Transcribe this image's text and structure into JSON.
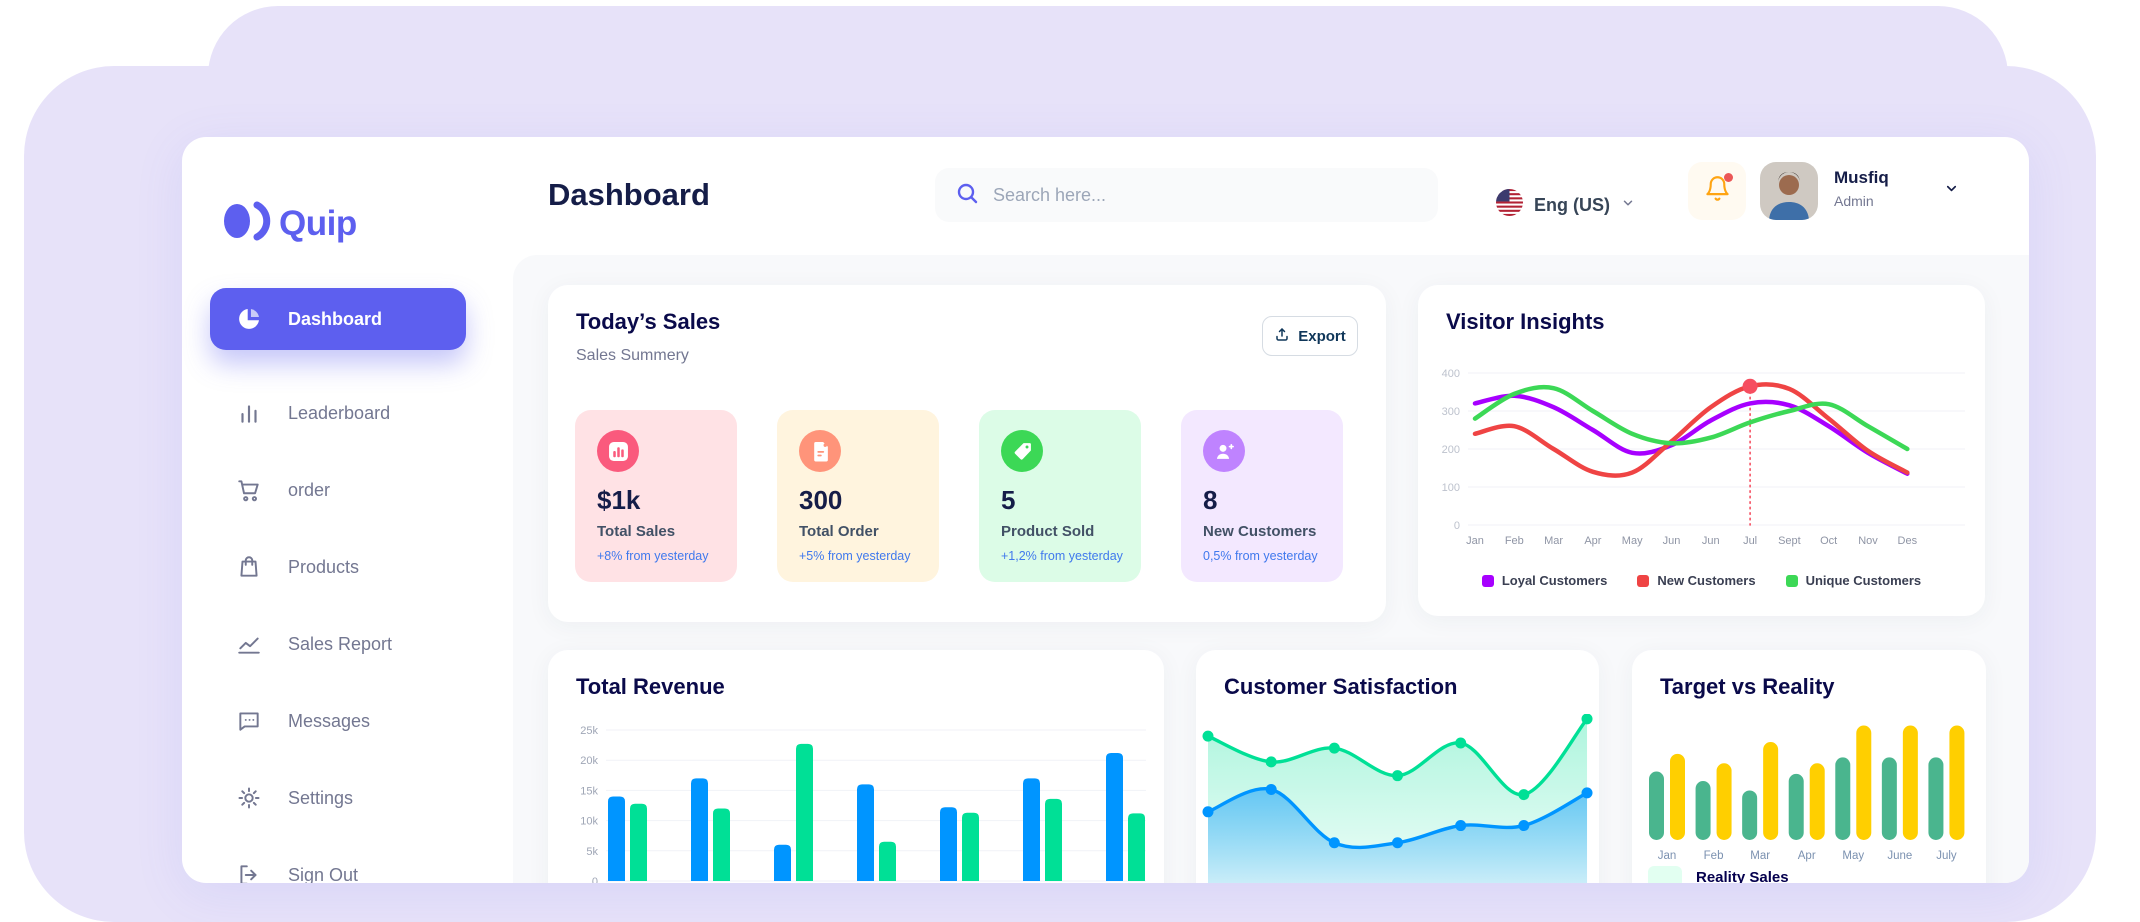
{
  "app": {
    "brand": "Quip",
    "accent_color": "#5D5FEF",
    "background_color": "#E7E2F9"
  },
  "header": {
    "page_title": "Dashboard",
    "search_placeholder": "Search here...",
    "language": "Eng (US)",
    "user_name": "Musfiq",
    "user_role": "Admin"
  },
  "sidebar": {
    "items": [
      {
        "label": "Dashboard",
        "icon": "pie-chart-icon",
        "active": true
      },
      {
        "label": "Leaderboard",
        "icon": "bar-chart-icon",
        "active": false
      },
      {
        "label": "order",
        "icon": "cart-icon",
        "active": false
      },
      {
        "label": "Products",
        "icon": "bag-icon",
        "active": false
      },
      {
        "label": "Sales Report",
        "icon": "line-chart-icon",
        "active": false
      },
      {
        "label": "Messages",
        "icon": "message-icon",
        "active": false
      },
      {
        "label": "Settings",
        "icon": "gear-icon",
        "active": false
      },
      {
        "label": "Sign Out",
        "icon": "sign-out-icon",
        "active": false
      }
    ]
  },
  "today_sales": {
    "title": "Today’s Sales",
    "subtitle": "Sales Summery",
    "export_label": "Export",
    "stats": [
      {
        "value": "$1k",
        "label": "Total Sales",
        "delta": "+8% from yesterday",
        "bg": "#FFE2E5",
        "icon_bg": "#FA5A7D",
        "icon": "bar-graph-icon"
      },
      {
        "value": "300",
        "label": "Total Order",
        "delta": "+5% from yesterday",
        "bg": "#FFF4DE",
        "icon_bg": "#FF947A",
        "icon": "file-icon"
      },
      {
        "value": "5",
        "label": "Product Sold",
        "delta": "+1,2% from yesterday",
        "bg": "#DCFCE7",
        "icon_bg": "#3CD856",
        "icon": "tag-icon"
      },
      {
        "value": "8",
        "label": "New Customers",
        "delta": "0,5% from yesterday",
        "bg": "#F3E8FF",
        "icon_bg": "#BF83FF",
        "icon": "new-user-icon"
      }
    ]
  },
  "chart_data": [
    {
      "id": "visitor-insights",
      "type": "line",
      "title": "Visitor Insights",
      "x_labels": [
        "Jan",
        "Feb",
        "Mar",
        "Apr",
        "May",
        "Jun",
        "Jun",
        "Jul",
        "Sept",
        "Oct",
        "Nov",
        "Des"
      ],
      "ylim": [
        0,
        400
      ],
      "yticks": [
        0,
        100,
        200,
        300,
        400
      ],
      "grid": true,
      "legend_position": "bottom",
      "series": [
        {
          "name": "Loyal Customers",
          "color": "#A700FF",
          "values": [
            320,
            340,
            310,
            250,
            190,
            210,
            275,
            320,
            315,
            260,
            190,
            135
          ]
        },
        {
          "name": "New Customers",
          "color": "#EF4444",
          "values": [
            240,
            260,
            200,
            140,
            138,
            220,
            310,
            365,
            358,
            280,
            195,
            138
          ]
        },
        {
          "name": "Unique Customers",
          "color": "#3CD856",
          "values": [
            280,
            345,
            360,
            300,
            240,
            215,
            230,
            270,
            300,
            318,
            260,
            200
          ]
        }
      ],
      "highlight": {
        "series": 1,
        "index": 7,
        "color": "#F64E60"
      }
    },
    {
      "id": "total-revenue",
      "type": "bar",
      "title": "Total Revenue",
      "categories": [
        "",
        "",
        "",
        "",
        "",
        "",
        ""
      ],
      "ylim": [
        0,
        25000
      ],
      "ytick_labels": [
        "0",
        "5k",
        "10k",
        "15k",
        "20k",
        "25k"
      ],
      "grid": true,
      "series": [
        {
          "name": "",
          "color": "#0095FF",
          "values": [
            14000,
            17000,
            6000,
            16000,
            12200,
            17000,
            21200
          ]
        },
        {
          "name": "",
          "color": "#00E096",
          "values": [
            12800,
            12000,
            22700,
            6500,
            11300,
            13600,
            11200
          ]
        }
      ]
    },
    {
      "id": "customer-satisfaction",
      "type": "area",
      "title": "Customer Satisfaction",
      "ylim": [
        0,
        100
      ],
      "series": [
        {
          "name": "",
          "color": "#00E096",
          "values": [
            79,
            64,
            72,
            56,
            75,
            45,
            89
          ]
        },
        {
          "name": "",
          "color": "#0095FF",
          "values": [
            35,
            48,
            17,
            17,
            27,
            27,
            46
          ]
        }
      ]
    },
    {
      "id": "target-vs-reality",
      "type": "bar",
      "title": "Target vs Reality",
      "categories": [
        "Jan",
        "Feb",
        "Mar",
        "Apr",
        "May",
        "June",
        "July"
      ],
      "ylim": [
        0,
        100
      ],
      "series": [
        {
          "name": "Reality Sales",
          "color": "#4AB58E",
          "values": [
            58,
            50,
            42,
            56,
            70,
            70,
            70
          ]
        },
        {
          "name": "",
          "color": "#FFCF00",
          "values": [
            73,
            65,
            83,
            65,
            97,
            97,
            97
          ]
        }
      ],
      "legend": [
        {
          "label": "Reality Sales",
          "swatch": "#E2FFF1"
        }
      ]
    }
  ]
}
